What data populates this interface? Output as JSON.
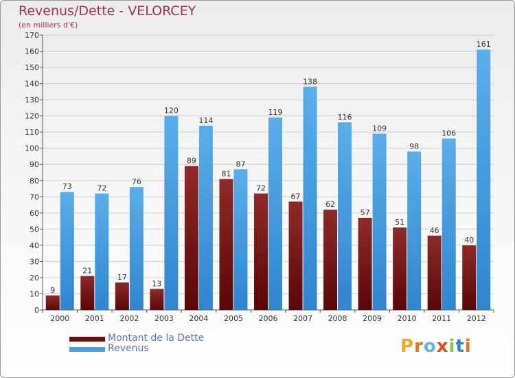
{
  "title": "Revenus/Dette - VELORCEY",
  "subtitle": "(en milliers d'€)",
  "logo_text": "Proxiti",
  "colors": {
    "dette": "#7a1414",
    "revenus": "#4a9fe0",
    "title": "#a3334f",
    "legend_text": "#5a6fe0"
  },
  "chart_data": {
    "type": "bar",
    "categories": [
      "2000",
      "2001",
      "2002",
      "2003",
      "2004",
      "2005",
      "2006",
      "2007",
      "2008",
      "2009",
      "2010",
      "2011",
      "2012"
    ],
    "series": [
      {
        "name": "Montant de la Dette",
        "values": [
          9,
          21,
          17,
          13,
          89,
          81,
          72,
          67,
          62,
          57,
          51,
          46,
          40
        ]
      },
      {
        "name": "Revenus",
        "values": [
          73,
          72,
          76,
          120,
          114,
          87,
          119,
          138,
          116,
          109,
          98,
          106,
          161
        ]
      }
    ],
    "ylim": [
      0,
      170
    ],
    "yticks": [
      0,
      10,
      20,
      30,
      40,
      50,
      60,
      70,
      80,
      90,
      100,
      110,
      120,
      130,
      140,
      150,
      160,
      170
    ],
    "grid": true,
    "legend_position": "bottom-left"
  }
}
